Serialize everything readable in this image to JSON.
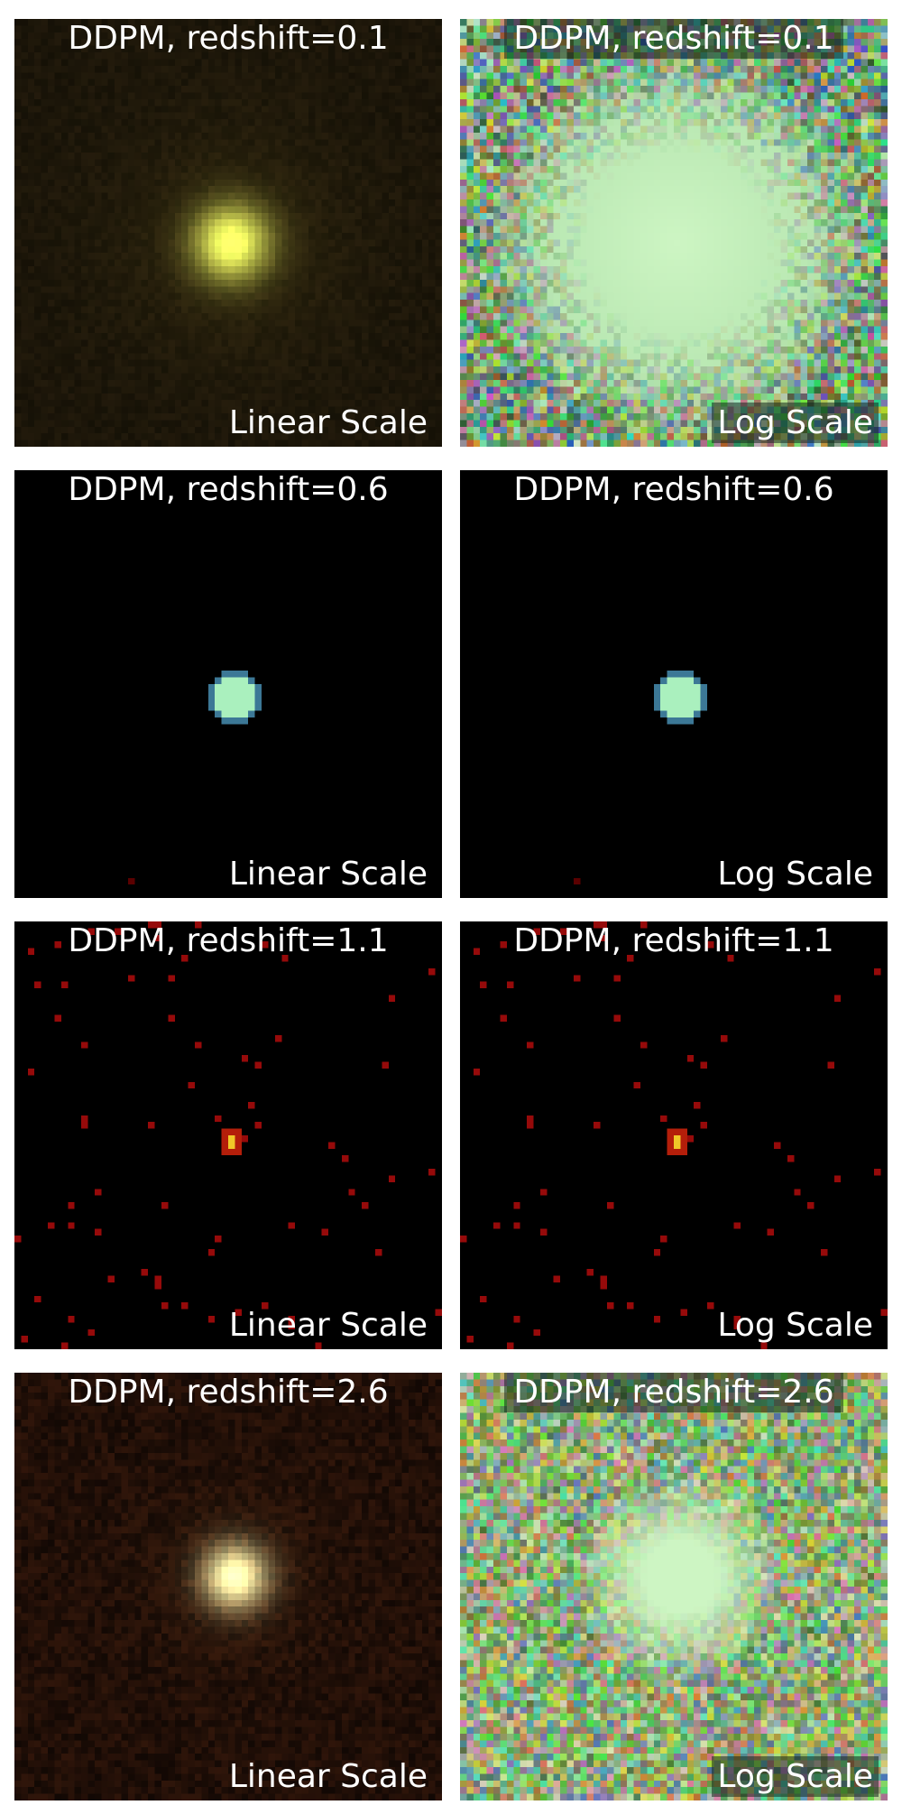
{
  "panels": [
    {
      "title": "DDPM, redshift=0.1",
      "scale": "Linear Scale"
    },
    {
      "title": "DDPM, redshift=0.1",
      "scale": "Log Scale"
    },
    {
      "title": "DDPM, redshift=0.6",
      "scale": "Linear Scale"
    },
    {
      "title": "DDPM, redshift=0.6",
      "scale": "Log Scale"
    },
    {
      "title": "DDPM, redshift=1.1",
      "scale": "Linear Scale"
    },
    {
      "title": "DDPM, redshift=1.1",
      "scale": "Log Scale"
    },
    {
      "title": "DDPM, redshift=2.6",
      "scale": "Linear Scale"
    },
    {
      "title": "DDPM, redshift=2.6",
      "scale": "Log Scale"
    }
  ]
}
